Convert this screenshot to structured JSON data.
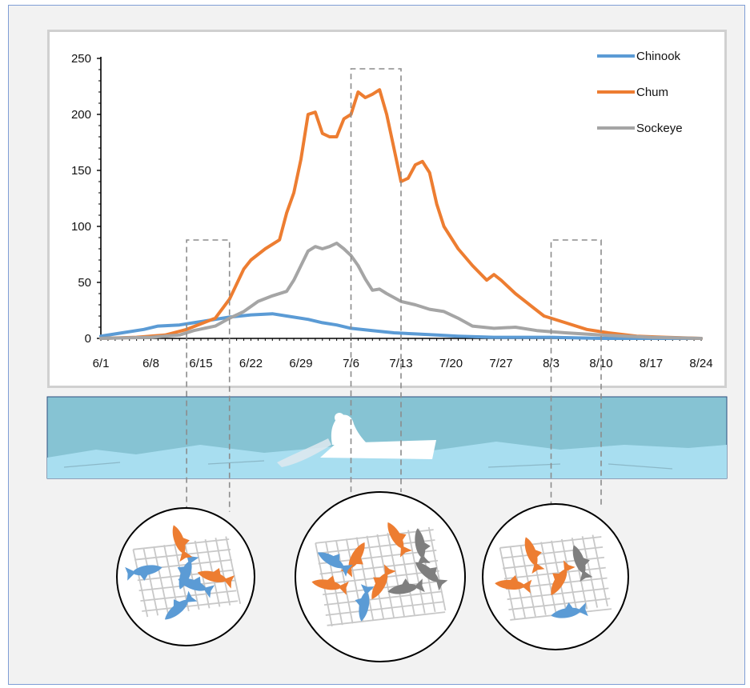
{
  "chart_data": {
    "type": "line",
    "title": "",
    "xlabel": "",
    "ylabel": "",
    "ylim": [
      0,
      250
    ],
    "yticks": [
      0,
      50,
      100,
      150,
      200,
      250
    ],
    "x_start": "6/1",
    "x_end": "8/24",
    "xticks": [
      "6/1",
      "6/8",
      "6/15",
      "6/22",
      "6/29",
      "7/6",
      "7/13",
      "7/20",
      "7/27",
      "8/3",
      "8/10",
      "8/17",
      "8/24"
    ],
    "legend_position": "top-right",
    "grid": false,
    "series": [
      {
        "name": "Chinook",
        "color": "#5b9bd5",
        "points": [
          [
            "6/1",
            2
          ],
          [
            "6/4",
            5
          ],
          [
            "6/7",
            8
          ],
          [
            "6/9",
            11
          ],
          [
            "6/12",
            12
          ],
          [
            "6/14",
            14
          ],
          [
            "6/16",
            16
          ],
          [
            "6/19",
            19
          ],
          [
            "6/22",
            21
          ],
          [
            "6/25",
            22
          ],
          [
            "6/27",
            20
          ],
          [
            "6/30",
            17
          ],
          [
            "7/2",
            14
          ],
          [
            "7/4",
            12
          ],
          [
            "7/6",
            9
          ],
          [
            "7/9",
            7
          ],
          [
            "7/12",
            5
          ],
          [
            "7/15",
            4
          ],
          [
            "7/18",
            3
          ],
          [
            "7/21",
            2
          ],
          [
            "7/26",
            1
          ],
          [
            "8/3",
            1
          ],
          [
            "8/10",
            0
          ],
          [
            "8/24",
            0
          ]
        ]
      },
      {
        "name": "Chum",
        "color": "#ed7d31",
        "points": [
          [
            "6/1",
            0
          ],
          [
            "6/6",
            1
          ],
          [
            "6/10",
            3
          ],
          [
            "6/13",
            8
          ],
          [
            "6/15",
            13
          ],
          [
            "6/17",
            18
          ],
          [
            "6/19",
            35
          ],
          [
            "6/21",
            62
          ],
          [
            "6/22",
            70
          ],
          [
            "6/24",
            80
          ],
          [
            "6/26",
            88
          ],
          [
            "6/27",
            112
          ],
          [
            "6/28",
            130
          ],
          [
            "6/29",
            160
          ],
          [
            "6/30",
            200
          ],
          [
            "7/1",
            202
          ],
          [
            "7/2",
            183
          ],
          [
            "7/3",
            180
          ],
          [
            "7/4",
            180
          ],
          [
            "7/5",
            196
          ],
          [
            "7/6",
            200
          ],
          [
            "7/7",
            220
          ],
          [
            "7/8",
            215
          ],
          [
            "7/9",
            218
          ],
          [
            "7/10",
            222
          ],
          [
            "7/11",
            200
          ],
          [
            "7/12",
            170
          ],
          [
            "7/13",
            140
          ],
          [
            "7/14",
            143
          ],
          [
            "7/15",
            155
          ],
          [
            "7/16",
            158
          ],
          [
            "7/17",
            148
          ],
          [
            "7/18",
            120
          ],
          [
            "7/19",
            100
          ],
          [
            "7/21",
            80
          ],
          [
            "7/23",
            65
          ],
          [
            "7/25",
            52
          ],
          [
            "7/26",
            57
          ],
          [
            "7/27",
            52
          ],
          [
            "7/29",
            40
          ],
          [
            "7/31",
            30
          ],
          [
            "8/2",
            20
          ],
          [
            "8/5",
            14
          ],
          [
            "8/8",
            8
          ],
          [
            "8/11",
            5
          ],
          [
            "8/15",
            2
          ],
          [
            "8/19",
            1
          ],
          [
            "8/24",
            0
          ]
        ]
      },
      {
        "name": "Sockeye",
        "color": "#a5a5a5",
        "points": [
          [
            "6/1",
            0
          ],
          [
            "6/8",
            1
          ],
          [
            "6/12",
            3
          ],
          [
            "6/14",
            7
          ],
          [
            "6/17",
            11
          ],
          [
            "6/19",
            18
          ],
          [
            "6/21",
            24
          ],
          [
            "6/23",
            33
          ],
          [
            "6/25",
            38
          ],
          [
            "6/27",
            42
          ],
          [
            "6/28",
            52
          ],
          [
            "6/30",
            78
          ],
          [
            "7/1",
            82
          ],
          [
            "7/2",
            80
          ],
          [
            "7/3",
            82
          ],
          [
            "7/4",
            85
          ],
          [
            "7/5",
            80
          ],
          [
            "7/6",
            74
          ],
          [
            "7/7",
            65
          ],
          [
            "7/8",
            53
          ],
          [
            "7/9",
            43
          ],
          [
            "7/10",
            44
          ],
          [
            "7/11",
            40
          ],
          [
            "7/13",
            33
          ],
          [
            "7/15",
            30
          ],
          [
            "7/17",
            26
          ],
          [
            "7/19",
            24
          ],
          [
            "7/21",
            18
          ],
          [
            "7/23",
            11
          ],
          [
            "7/26",
            9
          ],
          [
            "7/29",
            10
          ],
          [
            "8/1",
            7
          ],
          [
            "8/5",
            5
          ],
          [
            "8/10",
            3
          ],
          [
            "8/17",
            1
          ],
          [
            "8/24",
            0
          ]
        ]
      }
    ]
  },
  "net_illustrations": [
    {
      "id": "early",
      "window": [
        "6/13",
        "6/19"
      ],
      "fish": [
        {
          "species": "Chinook",
          "color": "#5b9bd5"
        },
        {
          "species": "Chinook",
          "color": "#5b9bd5"
        },
        {
          "species": "Chinook",
          "color": "#5b9bd5"
        },
        {
          "species": "Chinook",
          "color": "#5b9bd5"
        },
        {
          "species": "Chum",
          "color": "#ed7d31"
        },
        {
          "species": "Chum",
          "color": "#ed7d31"
        }
      ]
    },
    {
      "id": "peak",
      "window": [
        "7/6",
        "7/13"
      ],
      "fish": [
        {
          "species": "Chum",
          "color": "#ed7d31"
        },
        {
          "species": "Chum",
          "color": "#ed7d31"
        },
        {
          "species": "Chum",
          "color": "#ed7d31"
        },
        {
          "species": "Chum",
          "color": "#ed7d31"
        },
        {
          "species": "Sockeye",
          "color": "#7f7f7f"
        },
        {
          "species": "Sockeye",
          "color": "#7f7f7f"
        },
        {
          "species": "Sockeye",
          "color": "#7f7f7f"
        },
        {
          "species": "Chinook",
          "color": "#5b9bd5"
        },
        {
          "species": "Chinook",
          "color": "#5b9bd5"
        }
      ]
    },
    {
      "id": "late",
      "window": [
        "8/3",
        "8/10"
      ],
      "fish": [
        {
          "species": "Chum",
          "color": "#ed7d31"
        },
        {
          "species": "Chum",
          "color": "#ed7d31"
        },
        {
          "species": "Chum",
          "color": "#ed7d31"
        },
        {
          "species": "Sockeye",
          "color": "#7f7f7f"
        },
        {
          "species": "Chinook",
          "color": "#5b9bd5"
        }
      ]
    }
  ],
  "river_scene": {
    "description_icon": "fisher-in-boat-with-net-icon",
    "water_color": "#86c3d3",
    "wave_color": "#a8def0"
  }
}
